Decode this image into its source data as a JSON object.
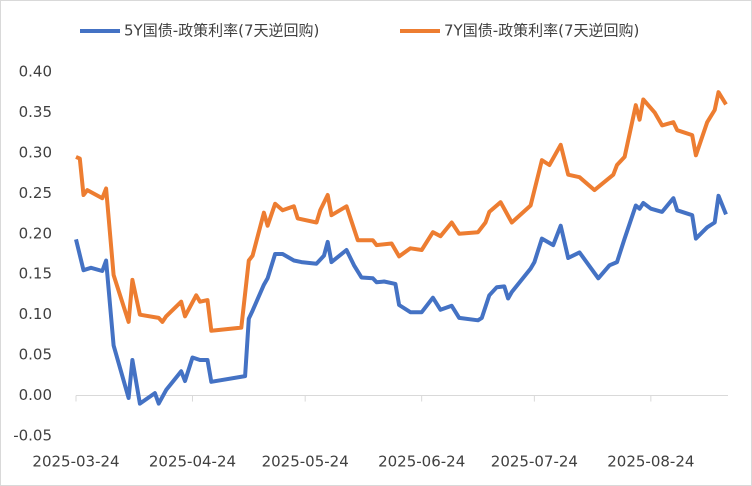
{
  "chart_data": {
    "type": "line",
    "xlim": [
      "2025-03-24",
      "2025-09-13"
    ],
    "xticks": [
      "2025-03-24",
      "2025-04-24",
      "2025-05-24",
      "2025-06-24",
      "2025-07-24",
      "2025-08-24"
    ],
    "ylim": [
      -0.05,
      0.4
    ],
    "yticks": [
      {
        "value": -0.05,
        "label": "-0.05"
      },
      {
        "value": 0,
        "label": "0.00"
      },
      {
        "value": 0.05,
        "label": "0.05"
      },
      {
        "value": 0.1,
        "label": "0.10"
      },
      {
        "value": 0.15,
        "label": "0.15"
      },
      {
        "value": 0.2,
        "label": "0.20"
      },
      {
        "value": 0.25,
        "label": "0.25"
      },
      {
        "value": 0.3,
        "label": "0.30"
      },
      {
        "value": 0.35,
        "label": "0.35"
      },
      {
        "value": 0.4,
        "label": "0.40"
      }
    ],
    "grid": false,
    "legend": "top",
    "series": [
      {
        "name": "5Y国债-政策利率(7天逆回购)",
        "color": "#4472c4",
        "x": [
          "2025-03-24",
          "2025-03-26",
          "2025-03-28",
          "2025-03-31",
          "2025-04-01",
          "2025-04-03",
          "2025-04-07",
          "2025-04-08",
          "2025-04-10",
          "2025-04-14",
          "2025-04-15",
          "2025-04-17",
          "2025-04-21",
          "2025-04-22",
          "2025-04-24",
          "2025-04-26",
          "2025-04-28",
          "2025-04-29",
          "2025-05-08",
          "2025-05-09",
          "2025-05-10",
          "2025-05-13",
          "2025-05-14",
          "2025-05-16",
          "2025-05-18",
          "2025-05-21",
          "2025-05-23",
          "2025-05-27",
          "2025-05-29",
          "2025-05-30",
          "2025-05-31",
          "2025-06-04",
          "2025-06-06",
          "2025-06-08",
          "2025-06-11",
          "2025-06-12",
          "2025-06-14",
          "2025-06-17",
          "2025-06-18",
          "2025-06-21",
          "2025-06-24",
          "2025-06-27",
          "2025-06-29",
          "2025-07-02",
          "2025-07-04",
          "2025-07-09",
          "2025-07-10",
          "2025-07-12",
          "2025-07-14",
          "2025-07-16",
          "2025-07-17",
          "2025-07-18",
          "2025-07-23",
          "2025-07-24",
          "2025-07-26",
          "2025-07-29",
          "2025-07-31",
          "2025-08-02",
          "2025-08-05",
          "2025-08-10",
          "2025-08-13",
          "2025-08-15",
          "2025-08-17",
          "2025-08-20",
          "2025-08-21",
          "2025-08-22",
          "2025-08-24",
          "2025-08-27",
          "2025-08-30",
          "2025-08-31",
          "2025-09-04",
          "2025-09-05",
          "2025-09-08",
          "2025-09-10",
          "2025-09-11",
          "2025-09-13"
        ],
        "values": [
          0.193,
          0.155,
          0.158,
          0.154,
          0.167,
          0.062,
          -0.003,
          0.044,
          -0.01,
          0.003,
          -0.01,
          0.007,
          0.03,
          0.018,
          0.047,
          0.044,
          0.044,
          0.017,
          0.024,
          0.095,
          0.105,
          0.137,
          0.145,
          0.175,
          0.175,
          0.167,
          0.165,
          0.163,
          0.173,
          0.19,
          0.165,
          0.18,
          0.161,
          0.146,
          0.145,
          0.14,
          0.141,
          0.138,
          0.112,
          0.103,
          0.103,
          0.121,
          0.106,
          0.111,
          0.096,
          0.093,
          0.096,
          0.124,
          0.134,
          0.135,
          0.12,
          0.128,
          0.157,
          0.165,
          0.194,
          0.186,
          0.21,
          0.17,
          0.177,
          0.145,
          0.161,
          0.165,
          0.194,
          0.235,
          0.231,
          0.238,
          0.231,
          0.227,
          0.244,
          0.229,
          0.223,
          0.194,
          0.208,
          0.214,
          0.247,
          0.224
        ]
      },
      {
        "name": "7Y国债-政策利率(7天逆回购)",
        "color": "#ed7d31",
        "x": [
          "2025-03-24",
          "2025-03-25",
          "2025-03-26",
          "2025-03-27",
          "2025-03-31",
          "2025-04-01",
          "2025-04-03",
          "2025-04-07",
          "2025-04-08",
          "2025-04-10",
          "2025-04-15",
          "2025-04-16",
          "2025-04-17",
          "2025-04-21",
          "2025-04-22",
          "2025-04-25",
          "2025-04-26",
          "2025-04-28",
          "2025-04-29",
          "2025-05-07",
          "2025-05-09",
          "2025-05-10",
          "2025-05-13",
          "2025-05-14",
          "2025-05-16",
          "2025-05-18",
          "2025-05-21",
          "2025-05-22",
          "2025-05-27",
          "2025-05-28",
          "2025-05-30",
          "2025-05-31",
          "2025-06-04",
          "2025-06-07",
          "2025-06-11",
          "2025-06-12",
          "2025-06-16",
          "2025-06-18",
          "2025-06-21",
          "2025-06-24",
          "2025-06-27",
          "2025-06-29",
          "2025-07-02",
          "2025-07-04",
          "2025-07-09",
          "2025-07-11",
          "2025-07-12",
          "2025-07-15",
          "2025-07-18",
          "2025-07-23",
          "2025-07-26",
          "2025-07-28",
          "2025-07-31",
          "2025-08-02",
          "2025-08-05",
          "2025-08-09",
          "2025-08-14",
          "2025-08-15",
          "2025-08-17",
          "2025-08-20",
          "2025-08-21",
          "2025-08-22",
          "2025-08-25",
          "2025-08-27",
          "2025-08-30",
          "2025-08-31",
          "2025-09-04",
          "2025-09-05",
          "2025-09-08",
          "2025-09-10",
          "2025-09-11",
          "2025-09-13"
        ],
        "values": [
          0.295,
          0.293,
          0.248,
          0.254,
          0.244,
          0.256,
          0.149,
          0.091,
          0.143,
          0.1,
          0.096,
          0.091,
          0.098,
          0.116,
          0.098,
          0.124,
          0.116,
          0.118,
          0.08,
          0.084,
          0.167,
          0.173,
          0.226,
          0.21,
          0.237,
          0.229,
          0.234,
          0.219,
          0.214,
          0.229,
          0.248,
          0.223,
          0.234,
          0.192,
          0.192,
          0.186,
          0.188,
          0.172,
          0.182,
          0.18,
          0.202,
          0.197,
          0.214,
          0.2,
          0.202,
          0.214,
          0.227,
          0.239,
          0.214,
          0.235,
          0.291,
          0.285,
          0.31,
          0.273,
          0.27,
          0.254,
          0.273,
          0.285,
          0.295,
          0.359,
          0.341,
          0.366,
          0.35,
          0.334,
          0.338,
          0.328,
          0.322,
          0.297,
          0.338,
          0.353,
          0.375,
          0.36
        ]
      }
    ]
  }
}
